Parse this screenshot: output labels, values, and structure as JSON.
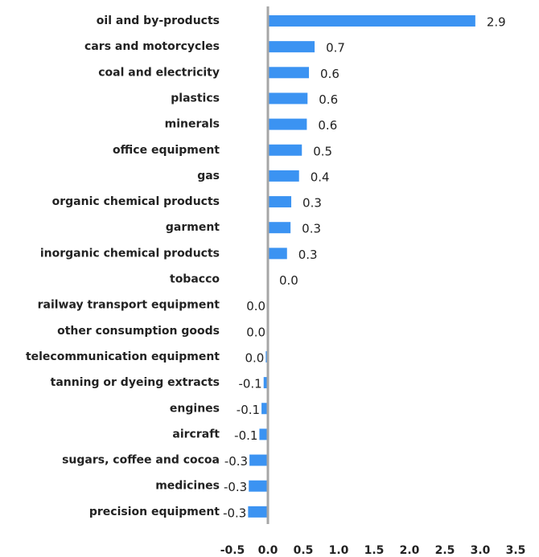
{
  "chart_data": {
    "type": "bar",
    "orientation": "horizontal",
    "color": "#3b93f2",
    "categories": [
      "oil and by-products",
      "cars and motorcycles",
      "coal and electricity",
      "plastics",
      "minerals",
      "office equipment",
      "gas",
      "organic chemical products",
      "garment",
      "inorganic chemical products",
      "tobacco",
      "railway transport equipment",
      "other consumption goods",
      "telecommunication equipment",
      "tanning or dyeing extracts",
      "engines",
      "aircraft",
      "sugars, coffee and cocoa",
      "medicines",
      "precision equipment"
    ],
    "values": [
      2.93,
      0.66,
      0.58,
      0.56,
      0.55,
      0.48,
      0.44,
      0.33,
      0.32,
      0.27,
      0.0,
      -0.01,
      -0.01,
      -0.03,
      -0.06,
      -0.09,
      -0.12,
      -0.26,
      -0.27,
      -0.28
    ],
    "value_labels": [
      "2.9",
      "0.7",
      "0.6",
      "0.6",
      "0.6",
      "0.5",
      "0.4",
      "0.3",
      "0.3",
      "0.3",
      "0.0",
      "0.0",
      "0.0",
      "0.0",
      "-0.1",
      "-0.1",
      "-0.1",
      "-0.3",
      "-0.3",
      "-0.3"
    ],
    "xlim": [
      -0.5,
      3.5
    ],
    "xticks": [
      -0.5,
      {
        "value": 0,
        "label": "0.0"
      },
      0.5,
      {
        "value": 1,
        "label": "1.0"
      },
      1.5,
      {
        "value": 2,
        "label": "2.0"
      },
      2.5,
      {
        "value": 3,
        "label": "3.0"
      },
      3.5
    ]
  }
}
